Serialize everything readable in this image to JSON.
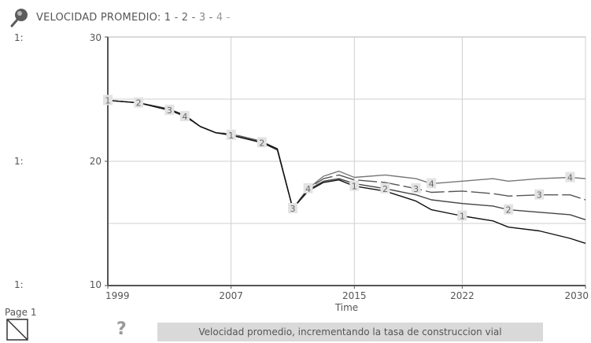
{
  "header": {
    "icon": "pin-icon",
    "title_prefix": "VELOCIDAD PROMEDIO: ",
    "series_refs": [
      "1",
      "2",
      "3",
      "4"
    ],
    "separator": " - ",
    "trailing": " -"
  },
  "chart_data": {
    "type": "line",
    "xlabel": "Time",
    "ylabel": "",
    "xlim": [
      1999,
      2030
    ],
    "ylim": [
      10,
      30
    ],
    "x_ticks": [
      "1999",
      "2007",
      "2015",
      "2022",
      "2030"
    ],
    "y_ticks": [
      "10",
      "20",
      "30"
    ],
    "y_scale_labels": [
      "1:",
      "1:",
      "1:"
    ],
    "grid": true,
    "series": [
      {
        "name": "1",
        "color": "#111111",
        "dash": "",
        "x": [
          1999,
          2001,
          2003,
          2004,
          2005,
          2006,
          2007,
          2009,
          2010,
          2011,
          2012,
          2013,
          2014,
          2015,
          2017,
          2019,
          2020,
          2022,
          2024,
          2025,
          2027,
          2029,
          2030
        ],
        "y": [
          24.9,
          24.7,
          24.1,
          23.7,
          22.8,
          22.3,
          22.1,
          21.5,
          21.0,
          16.2,
          17.6,
          18.3,
          18.5,
          18.0,
          17.6,
          16.8,
          16.1,
          15.6,
          15.2,
          14.7,
          14.4,
          13.8,
          13.4
        ],
        "labels_at": [
          1999,
          2007,
          2015,
          2022
        ]
      },
      {
        "name": "2",
        "color": "#444444",
        "dash": "",
        "x": [
          1999,
          2001,
          2003,
          2004,
          2005,
          2006,
          2007,
          2009,
          2010,
          2011,
          2012,
          2013,
          2014,
          2015,
          2017,
          2019,
          2020,
          2022,
          2024,
          2025,
          2027,
          2029,
          2030
        ],
        "y": [
          24.9,
          24.7,
          24.2,
          23.7,
          22.8,
          22.3,
          22.1,
          21.5,
          20.9,
          16.2,
          17.7,
          18.4,
          18.6,
          18.2,
          17.8,
          17.3,
          16.9,
          16.6,
          16.4,
          16.1,
          15.9,
          15.7,
          15.3
        ],
        "labels_at": [
          2001,
          2009,
          2017,
          2025
        ]
      },
      {
        "name": "3",
        "color": "#555555",
        "dash": "24 5",
        "x": [
          1999,
          2001,
          2003,
          2004,
          2005,
          2006,
          2007,
          2009,
          2010,
          2011,
          2012,
          2013,
          2014,
          2015,
          2017,
          2019,
          2020,
          2022,
          2024,
          2025,
          2027,
          2029,
          2030
        ],
        "y": [
          24.9,
          24.7,
          24.1,
          23.6,
          22.8,
          22.3,
          22.2,
          21.6,
          21.0,
          16.2,
          17.8,
          18.6,
          18.9,
          18.5,
          18.3,
          17.8,
          17.5,
          17.6,
          17.4,
          17.2,
          17.3,
          17.3,
          16.9
        ],
        "labels_at": [
          2003,
          2011,
          2019,
          2027
        ]
      },
      {
        "name": "4",
        "color": "#777777",
        "dash": "",
        "x": [
          1999,
          2001,
          2003,
          2004,
          2005,
          2006,
          2007,
          2009,
          2010,
          2011,
          2012,
          2013,
          2014,
          2015,
          2017,
          2019,
          2020,
          2022,
          2024,
          2025,
          2027,
          2029,
          2030
        ],
        "y": [
          24.9,
          24.7,
          24.2,
          23.6,
          22.8,
          22.3,
          22.2,
          21.6,
          21.0,
          16.2,
          17.8,
          18.8,
          19.2,
          18.7,
          18.9,
          18.6,
          18.2,
          18.4,
          18.6,
          18.4,
          18.6,
          18.7,
          18.6
        ],
        "labels_at": [
          2004,
          2012,
          2020,
          2029
        ]
      }
    ]
  },
  "footer": {
    "page_label": "Page 1",
    "help_glyph": "?",
    "caption": "Velocidad promedio, incrementando la tasa de construccion vial"
  }
}
